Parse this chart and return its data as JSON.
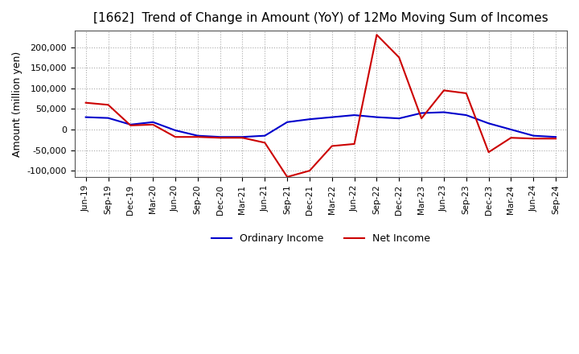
{
  "title": "[1662]  Trend of Change in Amount (YoY) of 12Mo Moving Sum of Incomes",
  "ylabel": "Amount (million yen)",
  "ylim": [
    -115000,
    240000
  ],
  "yticks": [
    -100000,
    -50000,
    0,
    50000,
    100000,
    150000,
    200000
  ],
  "background_color": "#ffffff",
  "grid_color": "#aaaaaa",
  "ordinary_income_color": "#0000cc",
  "net_income_color": "#cc0000",
  "x_labels": [
    "Jun-19",
    "Sep-19",
    "Dec-19",
    "Mar-20",
    "Jun-20",
    "Sep-20",
    "Dec-20",
    "Mar-21",
    "Jun-21",
    "Sep-21",
    "Dec-21",
    "Mar-22",
    "Jun-22",
    "Sep-22",
    "Dec-22",
    "Mar-23",
    "Jun-23",
    "Sep-23",
    "Dec-23",
    "Mar-24",
    "Jun-24",
    "Sep-24"
  ],
  "ordinary_income": [
    30000,
    28000,
    12000,
    18000,
    -2000,
    -15000,
    -18000,
    -18000,
    -15000,
    18000,
    25000,
    30000,
    35000,
    30000,
    27000,
    40000,
    42000,
    35000,
    15000,
    0,
    -15000,
    -18000
  ],
  "net_income": [
    65000,
    60000,
    10000,
    12000,
    -18000,
    -18000,
    -20000,
    -20000,
    -32000,
    -115000,
    -100000,
    -40000,
    -35000,
    230000,
    175000,
    27000,
    95000,
    88000,
    -55000,
    -20000,
    -22000,
    -22000
  ]
}
